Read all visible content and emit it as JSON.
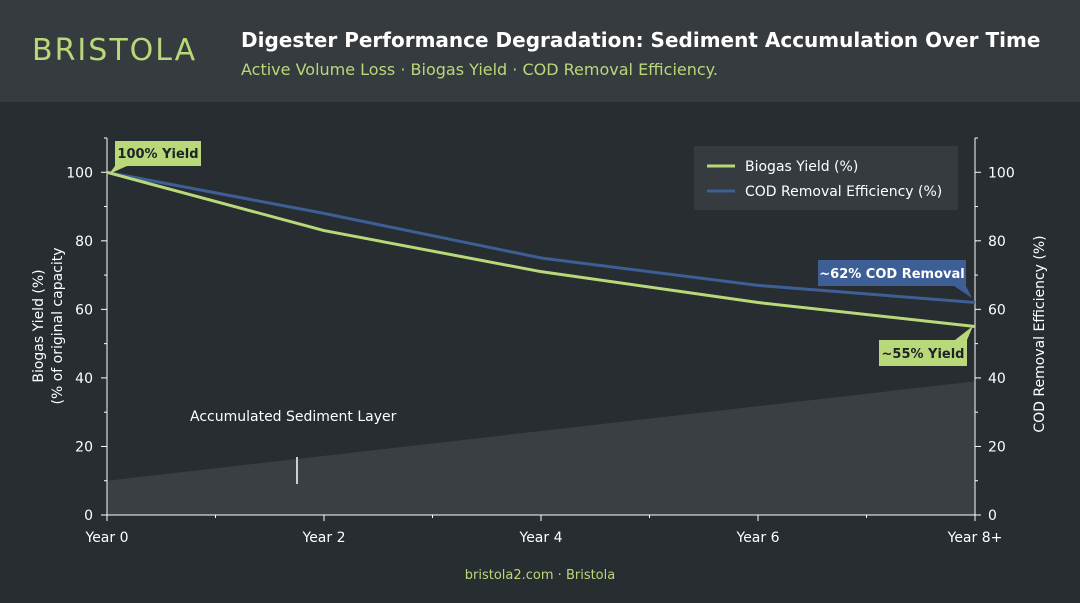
{
  "brand": {
    "logo_text": "BRISTOLA"
  },
  "header": {
    "title": "Digester Performance Degradation: Sediment Accumulation Over Time",
    "subtitle": "Active Volume Loss · Biogas Yield · COD Removal Efficiency."
  },
  "footer": {
    "text": "bristola2.com · Bristola"
  },
  "colors": {
    "accent": "#b9d87a",
    "biogas": "#b9d87a",
    "cod": "#3d5f96",
    "cod_label_bg": "#3d5f96",
    "sediment": "#3a3f43",
    "background": "#272d30",
    "header_bg": "#353b3f"
  },
  "chart_data": {
    "type": "line",
    "x": [
      0,
      2,
      4,
      6,
      8
    ],
    "categories": [
      "Year 0",
      "Year 2",
      "Year 4",
      "Year 6",
      "Year 8+"
    ],
    "series": [
      {
        "name": "Biogas Yield (%)",
        "axis": "left",
        "values": [
          100,
          83,
          71,
          62,
          55
        ]
      },
      {
        "name": "COD Removal Efficiency (%)",
        "axis": "right",
        "values": [
          100,
          88,
          75,
          67,
          62
        ]
      }
    ],
    "sediment_area": {
      "label": "Accumulated Sediment Layer",
      "x": [
        0,
        8
      ],
      "values": [
        10,
        39
      ]
    },
    "ylabel_left_line1": "Biogas Yield (%)",
    "ylabel_left_line2": "(% of original capacity",
    "ylabel_right": "COD Removal Efficiency (%)",
    "ylim": [
      0,
      110
    ],
    "yticks": [
      0,
      20,
      40,
      60,
      80,
      100
    ],
    "legend_position": "top-right",
    "annotations": {
      "start": "100% Yield",
      "end_yield": "~55% Yield",
      "end_cod": "~62% COD Removal"
    }
  }
}
